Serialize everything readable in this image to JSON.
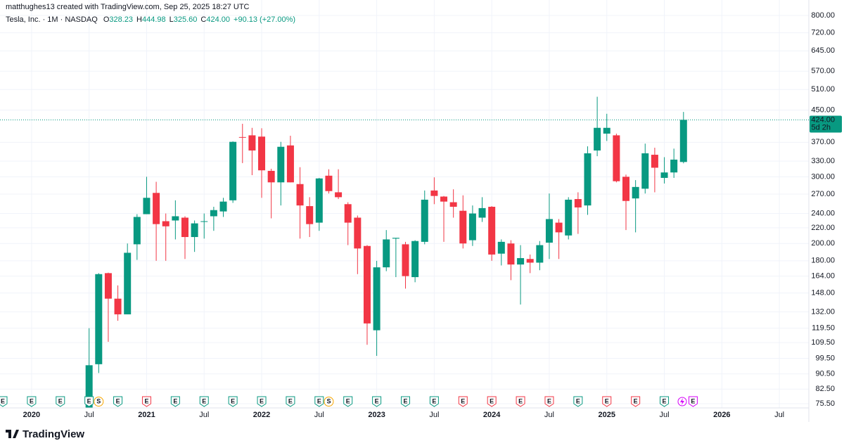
{
  "header": {
    "credit": "matthughes13 created with TradingView.com, Sep 25, 2025 18:27 UTC"
  },
  "footer": {
    "brand": "TradingView"
  },
  "chart_data": {
    "type": "candlestick",
    "symbol": "Tesla, Inc. · 1M · NASDAQ",
    "ohlc_legend": [
      {
        "key": "O",
        "label": "328.23"
      },
      {
        "key": "H",
        "label": "444.98"
      },
      {
        "key": "L",
        "label": "325.60"
      },
      {
        "key": "C",
        "label": "424.00"
      }
    ],
    "change_label": "+90.13 (+27.00%)",
    "last_price_label": "424.00",
    "countdown": "5d 2h",
    "up_color": "#089981",
    "down_color": "#f23645",
    "log_scale": true,
    "grid": true,
    "x": [
      "2020-07",
      "2020-08",
      "2020-09",
      "2020-10",
      "2020-11",
      "2020-12",
      "2021-01",
      "2021-02",
      "2021-03",
      "2021-04",
      "2021-05",
      "2021-06",
      "2021-07",
      "2021-08",
      "2021-09",
      "2021-10",
      "2021-11",
      "2021-12",
      "2022-01",
      "2022-02",
      "2022-03",
      "2022-04",
      "2022-05",
      "2022-06",
      "2022-07",
      "2022-08",
      "2022-09",
      "2022-10",
      "2022-11",
      "2022-12",
      "2023-01",
      "2023-02",
      "2023-03",
      "2023-04",
      "2023-05",
      "2023-06",
      "2023-07",
      "2023-08",
      "2023-09",
      "2023-10",
      "2023-11",
      "2023-12",
      "2024-01",
      "2024-02",
      "2024-03",
      "2024-04",
      "2024-05",
      "2024-06",
      "2024-07",
      "2024-08",
      "2024-09",
      "2024-10",
      "2024-11",
      "2024-12",
      "2025-01",
      "2025-02",
      "2025-03",
      "2025-04",
      "2025-05",
      "2025-06",
      "2025-07",
      "2025-08",
      "2025-09"
    ],
    "open": [
      72,
      96,
      167,
      143,
      130,
      199,
      239,
      272,
      229,
      230,
      234,
      208,
      229,
      236,
      243,
      260,
      382,
      386,
      383,
      311,
      290,
      363,
      287,
      251,
      227,
      302,
      273,
      254,
      234,
      197,
      118,
      173,
      206,
      199,
      163,
      202,
      276,
      266,
      257,
      244,
      204,
      234,
      250,
      188,
      200,
      176,
      182,
      178,
      201,
      227,
      210,
      262,
      252,
      352,
      390,
      386,
      300,
      263,
      279,
      343,
      298,
      308,
      328.23
    ],
    "high": [
      119.5,
      167,
      167.5,
      155,
      200,
      239,
      300,
      291,
      240,
      260,
      236,
      230,
      240,
      250,
      264,
      372,
      414,
      404,
      403,
      315,
      371,
      385,
      318,
      265,
      298,
      314,
      314,
      257,
      237,
      198,
      180,
      217,
      207,
      202,
      204,
      276,
      299,
      267,
      278,
      268,
      252,
      265,
      251,
      205,
      204,
      198,
      187,
      203,
      271,
      232,
      265,
      273,
      361,
      488,
      440,
      390,
      304,
      294,
      367,
      358,
      338,
      356,
      444.98
    ],
    "low": [
      70,
      91,
      110,
      125,
      130,
      181,
      239,
      180,
      180,
      205,
      182,
      190,
      206,
      216,
      235,
      256,
      326,
      303,
      264,
      233,
      252,
      290,
      206,
      208,
      216,
      271,
      262,
      198,
      166,
      108,
      101,
      169,
      163,
      152,
      158,
      199,
      254,
      202,
      234,
      194,
      197,
      228,
      180,
      175,
      160,
      138,
      167,
      170,
      182,
      182,
      205,
      212,
      238,
      340,
      373,
      290,
      217,
      214,
      271,
      273,
      288,
      298,
      325.6
    ],
    "close": [
      95.4,
      166,
      143,
      130,
      189,
      235,
      264,
      225,
      222,
      236,
      208,
      226,
      229,
      245,
      258,
      371,
      381,
      352,
      312,
      290,
      360,
      290,
      252,
      225,
      297,
      275,
      265,
      227,
      194,
      123,
      173,
      205,
      207,
      164,
      203,
      261,
      267,
      258,
      250,
      200,
      240,
      248,
      187,
      202,
      176,
      183,
      178,
      198,
      232,
      214,
      261,
      249,
      346,
      404,
      404,
      292,
      259,
      282,
      346,
      317,
      308,
      333,
      424
    ],
    "xlim": [
      "2019-10",
      "2026-10"
    ],
    "xticks": [
      {
        "value": "2020-01",
        "label": "2020"
      },
      {
        "value": "2020-07",
        "label": "Jul"
      },
      {
        "value": "2021-01",
        "label": "2021"
      },
      {
        "value": "2021-07",
        "label": "Jul"
      },
      {
        "value": "2022-01",
        "label": "2022"
      },
      {
        "value": "2022-07",
        "label": "Jul"
      },
      {
        "value": "2023-01",
        "label": "2023"
      },
      {
        "value": "2023-07",
        "label": "Jul"
      },
      {
        "value": "2024-01",
        "label": "2024"
      },
      {
        "value": "2024-07",
        "label": "Jul"
      },
      {
        "value": "2025-01",
        "label": "2025"
      },
      {
        "value": "2025-07",
        "label": "Jul"
      },
      {
        "value": "2026-01",
        "label": "2026"
      },
      {
        "value": "2026-07",
        "label": "Jul"
      }
    ],
    "ylim": [
      73.6,
      842
    ],
    "yticks": [
      {
        "value": 75.5,
        "label": "75.50"
      },
      {
        "value": 82.5,
        "label": "82.50"
      },
      {
        "value": 90.5,
        "label": "90.50"
      },
      {
        "value": 99.5,
        "label": "99.50"
      },
      {
        "value": 109.5,
        "label": "109.50"
      },
      {
        "value": 119.5,
        "label": "119.50"
      },
      {
        "value": 132,
        "label": "132.00"
      },
      {
        "value": 148,
        "label": "148.00"
      },
      {
        "value": 164,
        "label": "164.00"
      },
      {
        "value": 180,
        "label": "180.00"
      },
      {
        "value": 200,
        "label": "200.00"
      },
      {
        "value": 220,
        "label": "220.00"
      },
      {
        "value": 240,
        "label": "240.00"
      },
      {
        "value": 270,
        "label": "270.00"
      },
      {
        "value": 300,
        "label": "300.00"
      },
      {
        "value": 330,
        "label": "330.00"
      },
      {
        "value": 370,
        "label": "370.00"
      },
      {
        "value": 450,
        "label": "450.00"
      },
      {
        "value": 510,
        "label": "510.00"
      },
      {
        "value": 570,
        "label": "570.00"
      },
      {
        "value": 645,
        "label": "645.00"
      },
      {
        "value": 720,
        "label": "720.00"
      },
      {
        "value": 800,
        "label": "800.00"
      }
    ],
    "events": [
      {
        "x": "2019-10",
        "label": "E",
        "color": "#089981"
      },
      {
        "x": "2020-01",
        "label": "E",
        "color": "#089981"
      },
      {
        "x": "2020-04",
        "label": "E",
        "color": "#089981"
      },
      {
        "x": "2020-07",
        "label": "E",
        "color": "#089981"
      },
      {
        "x": "2020-08",
        "label": "S",
        "color": "#f7a600"
      },
      {
        "x": "2020-10",
        "label": "E",
        "color": "#089981"
      },
      {
        "x": "2021-01",
        "label": "E",
        "color": "#f23645"
      },
      {
        "x": "2021-04",
        "label": "E",
        "color": "#089981"
      },
      {
        "x": "2021-07",
        "label": "E",
        "color": "#089981"
      },
      {
        "x": "2021-10",
        "label": "E",
        "color": "#089981"
      },
      {
        "x": "2022-01",
        "label": "E",
        "color": "#089981"
      },
      {
        "x": "2022-04",
        "label": "E",
        "color": "#089981"
      },
      {
        "x": "2022-07",
        "label": "E",
        "color": "#089981"
      },
      {
        "x": "2022-08",
        "label": "S",
        "color": "#f7a600"
      },
      {
        "x": "2022-10",
        "label": "E",
        "color": "#089981"
      },
      {
        "x": "2023-01",
        "label": "E",
        "color": "#089981"
      },
      {
        "x": "2023-04",
        "label": "E",
        "color": "#089981"
      },
      {
        "x": "2023-07",
        "label": "E",
        "color": "#089981"
      },
      {
        "x": "2023-10",
        "label": "E",
        "color": "#f23645"
      },
      {
        "x": "2024-01",
        "label": "E",
        "color": "#f23645"
      },
      {
        "x": "2024-04",
        "label": "E",
        "color": "#f23645"
      },
      {
        "x": "2024-07",
        "label": "E",
        "color": "#f23645"
      },
      {
        "x": "2024-10",
        "label": "E",
        "color": "#089981"
      },
      {
        "x": "2025-01",
        "label": "E",
        "color": "#f23645"
      },
      {
        "x": "2025-04",
        "label": "E",
        "color": "#f23645"
      },
      {
        "x": "2025-07",
        "label": "E",
        "color": "#089981"
      },
      {
        "x": "2025-10",
        "label": "E",
        "color": "#d500f9"
      }
    ]
  }
}
